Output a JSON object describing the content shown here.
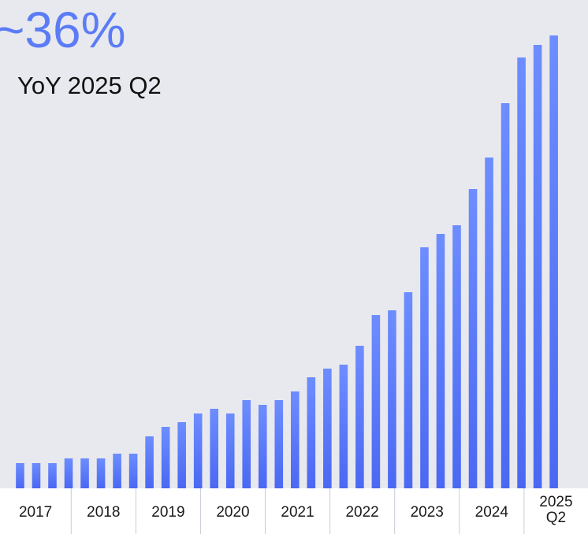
{
  "chart_data": {
    "type": "bar",
    "title": "~36%",
    "subtitle": "YoY 2025 Q2",
    "categories": [
      "2017",
      null,
      null,
      null,
      "2018",
      null,
      null,
      null,
      "2019",
      null,
      null,
      null,
      "2020",
      null,
      null,
      null,
      "2021",
      null,
      null,
      null,
      "2022",
      null,
      null,
      null,
      "2023",
      null,
      null,
      null,
      "2024",
      null,
      null,
      null,
      "2025\nQ2",
      null
    ],
    "values": [
      32,
      32,
      32,
      38,
      38,
      38,
      44,
      44,
      66,
      78,
      84,
      95,
      101,
      95,
      112,
      106,
      112,
      123,
      141,
      152,
      157,
      181,
      220,
      226,
      249,
      306,
      323,
      334,
      380,
      420,
      489,
      547,
      563,
      575
    ],
    "ylim": [
      0,
      575
    ],
    "color": "#4f70f5"
  }
}
